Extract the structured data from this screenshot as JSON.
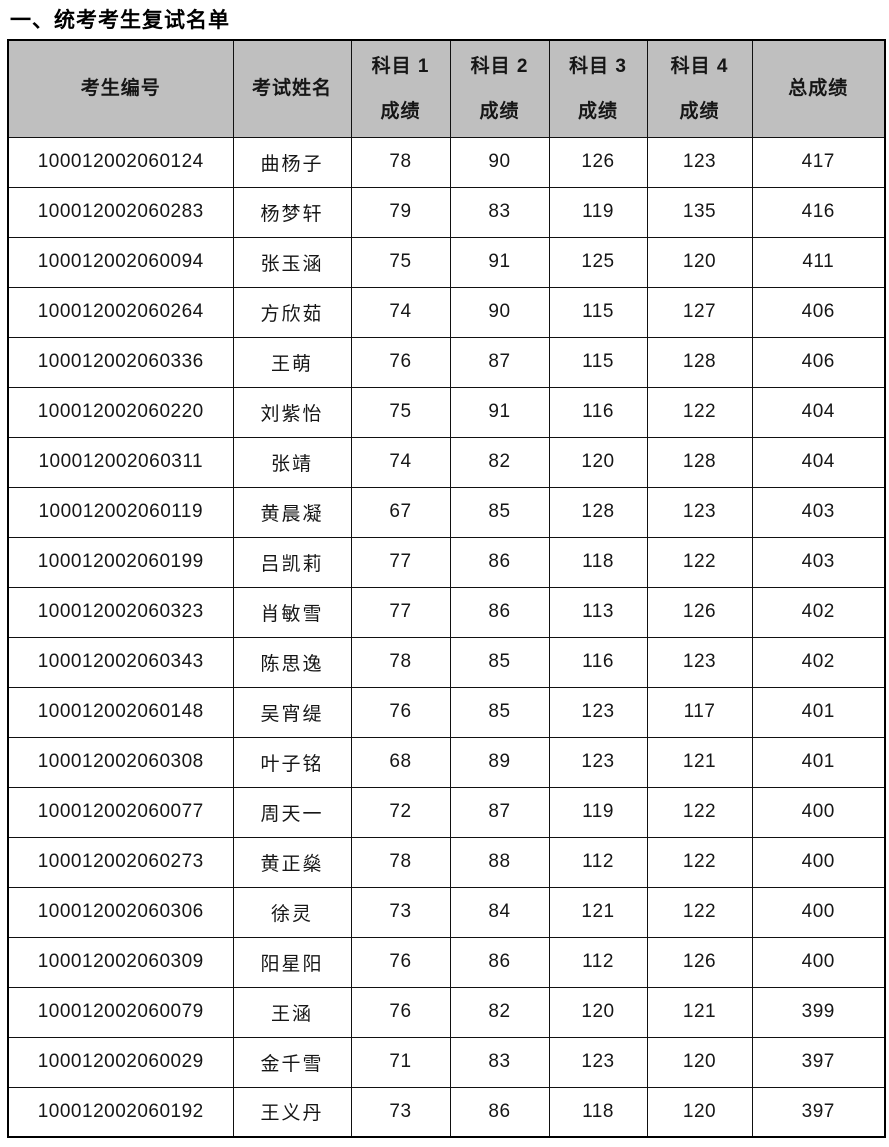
{
  "page": {
    "title": "一、统考考生复试名单"
  },
  "table": {
    "headers": [
      "考生编号",
      "考试姓名",
      "科目 1\n成绩",
      "科目 2\n成绩",
      "科目 3\n成绩",
      "科目 4\n成绩",
      "总成绩"
    ],
    "col_names": [
      "candidate-id-cell",
      "candidate-name-cell",
      "subject1-score-cell",
      "subject2-score-cell",
      "subject3-score-cell",
      "subject4-score-cell",
      "total-score-cell"
    ],
    "rows": [
      [
        "100012002060124",
        "曲杨子",
        "78",
        "90",
        "126",
        "123",
        "417"
      ],
      [
        "100012002060283",
        "杨梦轩",
        "79",
        "83",
        "119",
        "135",
        "416"
      ],
      [
        "100012002060094",
        "张玉涵",
        "75",
        "91",
        "125",
        "120",
        "411"
      ],
      [
        "100012002060264",
        "方欣茹",
        "74",
        "90",
        "115",
        "127",
        "406"
      ],
      [
        "100012002060336",
        "王萌",
        "76",
        "87",
        "115",
        "128",
        "406"
      ],
      [
        "100012002060220",
        "刘紫怡",
        "75",
        "91",
        "116",
        "122",
        "404"
      ],
      [
        "100012002060311",
        "张靖",
        "74",
        "82",
        "120",
        "128",
        "404"
      ],
      [
        "100012002060119",
        "黄晨凝",
        "67",
        "85",
        "128",
        "123",
        "403"
      ],
      [
        "100012002060199",
        "吕凯莉",
        "77",
        "86",
        "118",
        "122",
        "403"
      ],
      [
        "100012002060323",
        "肖敏雪",
        "77",
        "86",
        "113",
        "126",
        "402"
      ],
      [
        "100012002060343",
        "陈思逸",
        "78",
        "85",
        "116",
        "123",
        "402"
      ],
      [
        "100012002060148",
        "吴宵缇",
        "76",
        "85",
        "123",
        "117",
        "401"
      ],
      [
        "100012002060308",
        "叶子铭",
        "68",
        "89",
        "123",
        "121",
        "401"
      ],
      [
        "100012002060077",
        "周天一",
        "72",
        "87",
        "119",
        "122",
        "400"
      ],
      [
        "100012002060273",
        "黄正燊",
        "78",
        "88",
        "112",
        "122",
        "400"
      ],
      [
        "100012002060306",
        "徐灵",
        "73",
        "84",
        "121",
        "122",
        "400"
      ],
      [
        "100012002060309",
        "阳星阳",
        "76",
        "86",
        "112",
        "126",
        "400"
      ],
      [
        "100012002060079",
        "王涵",
        "76",
        "82",
        "120",
        "121",
        "399"
      ],
      [
        "100012002060029",
        "金千雪",
        "71",
        "83",
        "123",
        "120",
        "397"
      ],
      [
        "100012002060192",
        "王义丹",
        "73",
        "86",
        "118",
        "120",
        "397"
      ]
    ]
  },
  "colors": {
    "header_bg": "#bfbfbf",
    "border": "#000000",
    "text": "#161616"
  }
}
